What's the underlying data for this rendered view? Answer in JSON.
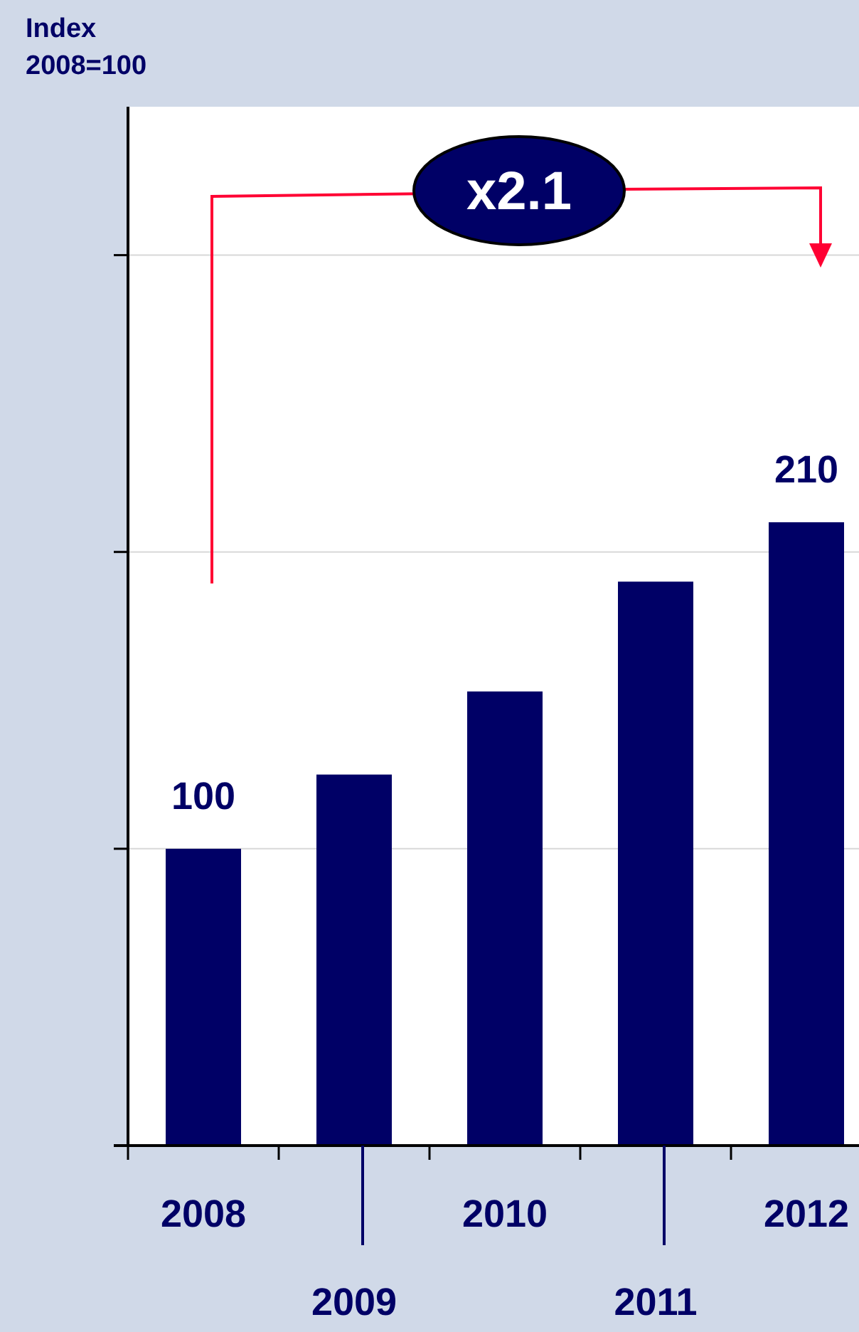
{
  "chart_data": {
    "type": "bar",
    "ylabel": "Index\n2008=100",
    "categories": [
      "2008",
      "2009",
      "2010",
      "2011",
      "2012"
    ],
    "values": [
      100,
      125,
      153,
      190,
      210
    ],
    "value_labels": [
      "100",
      null,
      null,
      null,
      "210"
    ],
    "color": "#000066",
    "ylim": [
      0,
      350
    ],
    "yticks": [
      {
        "value": 0,
        "label": null
      },
      {
        "value": 100,
        "label": null
      },
      {
        "value": 200,
        "label": null
      },
      {
        "value": 300,
        "label": null
      }
    ],
    "grid": "y",
    "annotations": [
      "x2.1"
    ]
  }
}
